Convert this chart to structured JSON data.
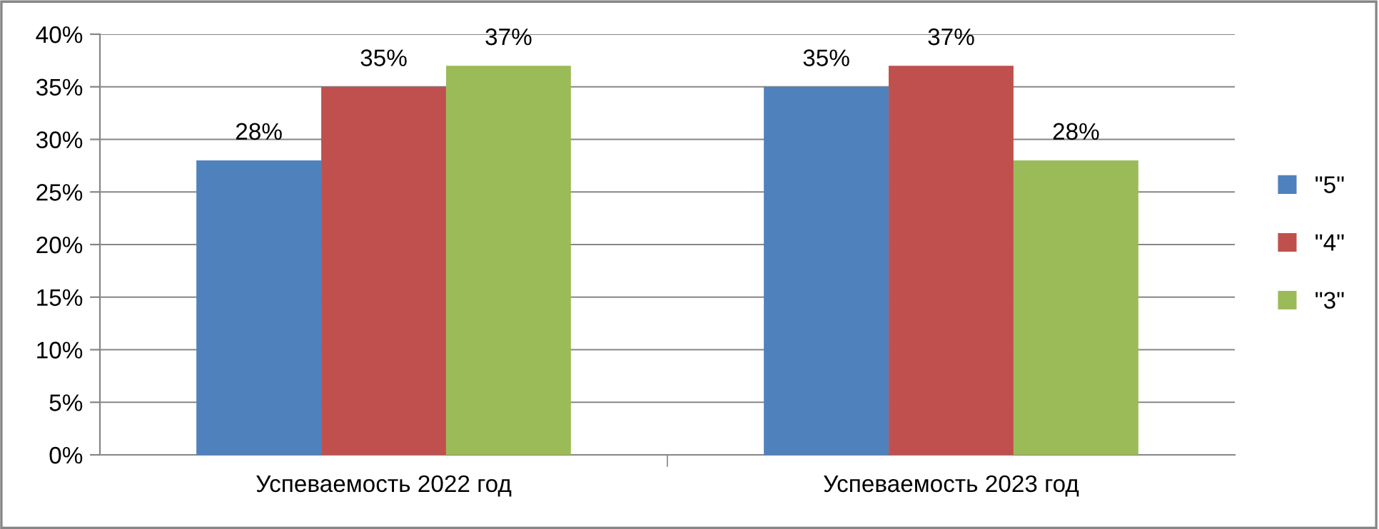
{
  "chart_data": {
    "type": "bar",
    "categories": [
      "Успеваемость 2022 год",
      "Успеваемость 2023 год"
    ],
    "series": [
      {
        "name": "\"5\"",
        "color": "#4f81bd",
        "values": [
          28,
          35
        ],
        "value_labels": [
          "28%",
          "35%"
        ]
      },
      {
        "name": "\"4\"",
        "color": "#c0504d",
        "values": [
          35,
          37
        ],
        "value_labels": [
          "35%",
          "37%"
        ]
      },
      {
        "name": "\"3\"",
        "color": "#9bbb59",
        "values": [
          37,
          28
        ],
        "value_labels": [
          "37%",
          "28%"
        ]
      }
    ],
    "ylim": [
      0,
      40
    ],
    "yticks": [
      {
        "value": 0,
        "label": "0%"
      },
      {
        "value": 5,
        "label": "5%"
      },
      {
        "value": 10,
        "label": "10%"
      },
      {
        "value": 15,
        "label": "15%"
      },
      {
        "value": 20,
        "label": "20%"
      },
      {
        "value": 25,
        "label": "25%"
      },
      {
        "value": 30,
        "label": "30%"
      },
      {
        "value": 35,
        "label": "35%"
      },
      {
        "value": 40,
        "label": "40%"
      }
    ],
    "grid": "y",
    "legend": "right"
  }
}
